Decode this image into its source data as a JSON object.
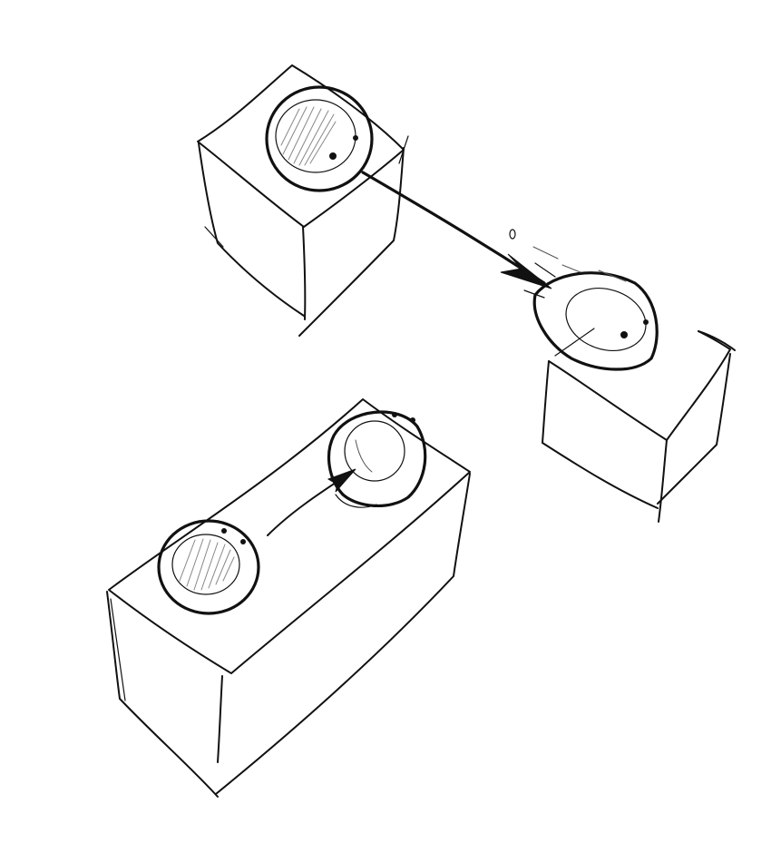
{
  "scene": {
    "background": "#ffffff",
    "ink_color": "#111111",
    "shading_color": "#888888",
    "objects": [
      {
        "id": "cube-top-left",
        "kind": "cube-with-round-puck"
      },
      {
        "id": "cube-right",
        "kind": "cube-with-tilted-puck"
      },
      {
        "id": "long-box-bottom",
        "kind": "rectangular-box-with-two-pucks"
      }
    ],
    "arrows": [
      {
        "id": "arrow-diagonal",
        "from": "cube-top-left",
        "to": "cube-right"
      },
      {
        "id": "arrow-short",
        "from": "long-box-bottom-left-puck",
        "to": "long-box-bottom-right-puck"
      }
    ]
  }
}
